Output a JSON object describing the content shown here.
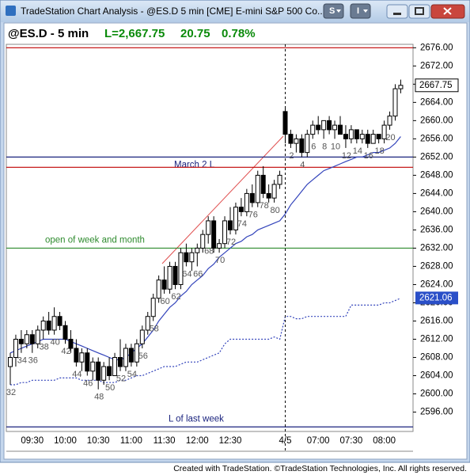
{
  "window": {
    "title": "TradeStation Chart Analysis - @ES.D 5 min [CME] E-mini S&P 500 Co...",
    "buttons": [
      "S",
      "I"
    ]
  },
  "header": {
    "symbol": "@ES.D - 5 min",
    "last": "L=2,667.75",
    "change": "20.75",
    "percent": "0.78%"
  },
  "footer": "Created with TradeStation. ©TradeStation Technologies, Inc. All rights reserved.",
  "chart_data": {
    "type": "candlestick",
    "categories": [
      null,
      null,
      null,
      null,
      "09:30",
      null,
      null,
      null,
      null,
      null,
      "10:00",
      null,
      null,
      null,
      null,
      null,
      "10:30",
      null,
      null,
      null,
      null,
      null,
      "11:00",
      null,
      null,
      null,
      null,
      null,
      "11:30",
      null,
      null,
      null,
      null,
      null,
      "12:00",
      null,
      null,
      null,
      null,
      null,
      "12:30",
      null,
      null,
      null,
      null,
      null,
      null,
      null,
      null,
      null,
      "4/5",
      null,
      null,
      null,
      null,
      null,
      "07:00",
      null,
      null,
      null,
      null,
      null,
      "07:30",
      null,
      null,
      null,
      null,
      null,
      "08:00",
      null,
      null,
      null
    ],
    "open": [
      2606,
      2608,
      2612,
      2611,
      2613,
      2611,
      2614,
      2616,
      2614,
      2617,
      2615,
      2612,
      2610,
      2607,
      2609,
      2605,
      2607,
      2603,
      2606,
      2604,
      2608,
      2606,
      2610,
      2607,
      2611,
      2614,
      2617,
      2621,
      2625,
      2623,
      2628,
      2624,
      2631,
      2629,
      2631,
      2632,
      2635,
      2638,
      2632,
      2633,
      2638,
      2636,
      2641,
      2640,
      2644,
      2642,
      2648,
      2644,
      2643,
      2646,
      2662,
      2657,
      2655,
      2656,
      2653,
      2657,
      2659,
      2658,
      2660,
      2658,
      2659,
      2657,
      2656,
      2658,
      2656,
      2657,
      2655,
      2657,
      2656,
      2659,
      2661,
      2667
    ],
    "high": [
      2609,
      2613,
      2614,
      2614,
      2614,
      2615,
      2617,
      2618,
      2619,
      2618,
      2616,
      2614,
      2612,
      2610,
      2610,
      2608,
      2608,
      2607,
      2608,
      2609,
      2612,
      2611,
      2611,
      2612,
      2615,
      2618,
      2622,
      2626,
      2628,
      2629,
      2629,
      2632,
      2633,
      2632,
      2633,
      2636,
      2639,
      2639,
      2634,
      2639,
      2641,
      2642,
      2643,
      2645,
      2646,
      2649,
      2650,
      2646,
      2647,
      2649,
      2663,
      2658,
      2657,
      2657,
      2658,
      2660,
      2661,
      2660,
      2661,
      2660,
      2661,
      2659,
      2659,
      2658,
      2658,
      2658,
      2658,
      2657,
      2660,
      2662,
      2668,
      2669
    ],
    "low": [
      2602,
      2606,
      2609,
      2610,
      2609,
      2610,
      2612,
      2613,
      2613,
      2614,
      2611,
      2609,
      2606,
      2605,
      2604,
      2603,
      2601,
      2602,
      2603,
      2604,
      2605,
      2605,
      2606,
      2606,
      2610,
      2613,
      2616,
      2620,
      2622,
      2622,
      2623,
      2623,
      2628,
      2627,
      2628,
      2631,
      2633,
      2631,
      2631,
      2632,
      2635,
      2635,
      2639,
      2639,
      2641,
      2641,
      2643,
      2642,
      2642,
      2645,
      2655,
      2654,
      2653,
      2652,
      2652,
      2656,
      2657,
      2656,
      2657,
      2656,
      2657,
      2654,
      2655,
      2655,
      2655,
      2654,
      2655,
      2655,
      2655,
      2658,
      2660,
      2666
    ],
    "close": [
      2608,
      2612,
      2611,
      2613,
      2611,
      2614,
      2616,
      2614,
      2617,
      2615,
      2612,
      2610,
      2607,
      2609,
      2605,
      2607,
      2603,
      2606,
      2604,
      2608,
      2606,
      2610,
      2607,
      2611,
      2614,
      2617,
      2621,
      2625,
      2623,
      2628,
      2624,
      2631,
      2629,
      2631,
      2632,
      2635,
      2638,
      2632,
      2633,
      2638,
      2636,
      2641,
      2640,
      2644,
      2642,
      2648,
      2644,
      2643,
      2646,
      2648,
      2657,
      2655,
      2656,
      2653,
      2657,
      2659,
      2658,
      2660,
      2658,
      2659,
      2657,
      2656,
      2658,
      2656,
      2657,
      2655,
      2657,
      2656,
      2659,
      2661,
      2667,
      2667.75
    ],
    "bar_labels": [
      "32",
      null,
      "34",
      null,
      "36",
      null,
      "38",
      null,
      "40",
      null,
      "42",
      null,
      "44",
      null,
      "46",
      null,
      {
        "text": "48",
        "color": "#c00000"
      },
      null,
      "50",
      null,
      "52",
      null,
      "54",
      null,
      "56",
      null,
      "58",
      null,
      {
        "text": "60",
        "color": "#c00000"
      },
      null,
      "62",
      null,
      "64",
      null,
      "66",
      null,
      "68",
      null,
      "70",
      null,
      {
        "text": "72",
        "color": "#c00000"
      },
      null,
      "74",
      null,
      "76",
      null,
      "78",
      null,
      "80",
      null,
      null,
      "2",
      null,
      {
        "text": "4",
        "color": "#c00000"
      },
      null,
      "6",
      null,
      "8",
      null,
      "10",
      null,
      {
        "text": "12",
        "color": "#c00000"
      },
      null,
      "14",
      null,
      "16",
      null,
      {
        "text": "18",
        "color": "#3060d0"
      },
      null,
      "20",
      null,
      null
    ],
    "lines": [
      {
        "color": "#3344bb",
        "style": "solid",
        "values": [
          2609,
          2609.5,
          2610,
          2610.5,
          2611,
          2611.5,
          2612,
          2612,
          2612,
          2612,
          2612,
          2611.5,
          2611,
          2610.5,
          2610,
          2609.5,
          2609,
          2608.5,
          2608,
          2607.5,
          2607.5,
          2608,
          2609,
          2610,
          2611,
          2612.5,
          2614,
          2616,
          2617.5,
          2619,
          2620,
          2621.5,
          2622.5,
          2624,
          2625,
          2626,
          2627.5,
          2628.5,
          2630,
          2631,
          2632,
          2633,
          2633.5,
          2634.5,
          2635,
          2636,
          2636.5,
          2637,
          2637.5,
          2638,
          2639.5,
          2641.5,
          2643,
          2644.5,
          2646,
          2647,
          2648,
          2649,
          2649.5,
          2650,
          2650.5,
          2651,
          2651.5,
          2652,
          2652,
          2652.5,
          2653,
          2653,
          2653.5,
          2654,
          2655,
          2656.5
        ]
      },
      {
        "color": "#3344bb",
        "style": "dotted",
        "values": [
          2602,
          2602,
          2602.5,
          2602.5,
          2603,
          2603,
          2603,
          2603,
          2603,
          2603.5,
          2603.5,
          2603.5,
          2603.5,
          2603,
          2603,
          2603,
          2603,
          2602.5,
          2602.5,
          2602.5,
          2603,
          2603,
          2603.5,
          2604,
          2604,
          2604.5,
          2605,
          2605.5,
          2606,
          2606,
          2606,
          2606.5,
          2607,
          2607,
          2607,
          2607.5,
          2608,
          2608.5,
          2609,
          2611,
          2612,
          2612,
          2612,
          2612,
          2612,
          2612,
          2612,
          2612,
          2612.5,
          2612,
          2617,
          2617,
          2616.5,
          2616.5,
          2617,
          2617,
          2617,
          2617,
          2617,
          2617,
          2617,
          2617,
          2619.5,
          2619.5,
          2619.5,
          2619.5,
          2619.5,
          2619.5,
          2620,
          2620,
          2620.5,
          2621
        ]
      }
    ],
    "levels": [
      {
        "value": 2676,
        "color": "#c00000"
      },
      {
        "value": 2652,
        "color": "#1a237e",
        "label": "March 2  L"
      },
      {
        "value": 2649.75,
        "color": "#c00000"
      },
      {
        "value": 2632,
        "color": "#2e8b2e",
        "label": "open of week and month"
      },
      {
        "value": 2592.75,
        "color": "#1a237e",
        "label": "L of last week"
      }
    ],
    "last_tag": {
      "value": 2667.75,
      "label": "2667.75"
    },
    "indicator_tag": {
      "value": 2621.06,
      "label": "2621.06",
      "color": "#2a4fc8"
    },
    "ylim": [
      2591.75,
      2676.75
    ],
    "yticks": [
      {
        "value": 2676,
        "label": "2676.00"
      },
      {
        "value": 2672,
        "label": "2672.00"
      },
      {
        "value": 2668,
        "label": "2668.00"
      },
      {
        "value": 2664,
        "label": "2664.00"
      },
      {
        "value": 2660,
        "label": "2660.00"
      },
      {
        "value": 2656,
        "label": "2656.00"
      },
      {
        "value": 2652,
        "label": "2652.00"
      },
      {
        "value": 2648,
        "label": "2648.00"
      },
      {
        "value": 2644,
        "label": "2644.00"
      },
      {
        "value": 2640,
        "label": "2640.00"
      },
      {
        "value": 2636,
        "label": "2636.00"
      },
      {
        "value": 2632,
        "label": "2632.00"
      },
      {
        "value": 2628,
        "label": "2628.00"
      },
      {
        "value": 2624,
        "label": "2624.00"
      },
      {
        "value": 2620,
        "label": "2620.00"
      },
      {
        "value": 2616,
        "label": "2616.00"
      },
      {
        "value": 2612,
        "label": "2612.00"
      },
      {
        "value": 2608,
        "label": "2608.00"
      },
      {
        "value": 2604,
        "label": "2604.00"
      },
      {
        "value": 2600,
        "label": "2600.00"
      },
      {
        "value": 2596,
        "label": "2596.00"
      }
    ],
    "session_break": "4/5"
  }
}
